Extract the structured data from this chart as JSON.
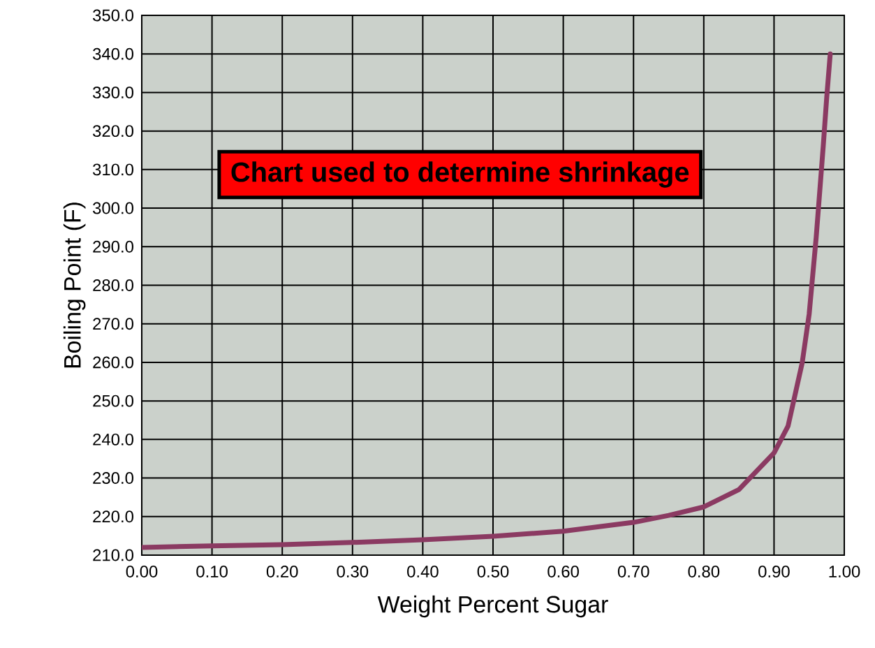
{
  "chart_data": {
    "type": "line",
    "xlabel": "Weight Percent Sugar",
    "ylabel": "Boiling Point (F)",
    "annotations": [
      "Chart used to determine shrinkage"
    ],
    "x": [
      0.0,
      0.1,
      0.2,
      0.3,
      0.4,
      0.5,
      0.6,
      0.7,
      0.75,
      0.8,
      0.85,
      0.9,
      0.92,
      0.94,
      0.95,
      0.96,
      0.97,
      0.975,
      0.98
    ],
    "series": [
      {
        "color": "#8b3a62",
        "values": [
          212.0,
          212.4,
          212.7,
          213.3,
          214.0,
          214.9,
          216.2,
          218.5,
          220.3,
          222.5,
          227.0,
          236.5,
          243.5,
          259.8,
          272.5,
          292.4,
          316.0,
          328.7,
          340.0
        ]
      }
    ],
    "xlim": [
      0,
      1
    ],
    "ylim": [
      210,
      350
    ],
    "xticks": [
      {
        "value": 0,
        "label": "0.00"
      },
      {
        "value": 0.1,
        "label": "0.10"
      },
      {
        "value": 0.2,
        "label": "0.20"
      },
      {
        "value": 0.3,
        "label": "0.30"
      },
      {
        "value": 0.4,
        "label": "0.40"
      },
      {
        "value": 0.5,
        "label": "0.50"
      },
      {
        "value": 0.6,
        "label": "0.60"
      },
      {
        "value": 0.7,
        "label": "0.70"
      },
      {
        "value": 0.8,
        "label": "0.80"
      },
      {
        "value": 0.9,
        "label": "0.90"
      },
      {
        "value": 1,
        "label": "1.00"
      }
    ],
    "yticks": [
      {
        "value": 210,
        "label": "210.0"
      },
      {
        "value": 220,
        "label": "220.0"
      },
      {
        "value": 230,
        "label": "230.0"
      },
      {
        "value": 240,
        "label": "240.0"
      },
      {
        "value": 250,
        "label": "250.0"
      },
      {
        "value": 260,
        "label": "260.0"
      },
      {
        "value": 270,
        "label": "270.0"
      },
      {
        "value": 280,
        "label": "280.0"
      },
      {
        "value": 290,
        "label": "290.0"
      },
      {
        "value": 300,
        "label": "300.0"
      },
      {
        "value": 310,
        "label": "310.0"
      },
      {
        "value": 320,
        "label": "320.0"
      },
      {
        "value": 330,
        "label": "330.0"
      },
      {
        "value": 340,
        "label": "340.0"
      },
      {
        "value": 350,
        "label": "350.0"
      }
    ],
    "grid": true
  }
}
